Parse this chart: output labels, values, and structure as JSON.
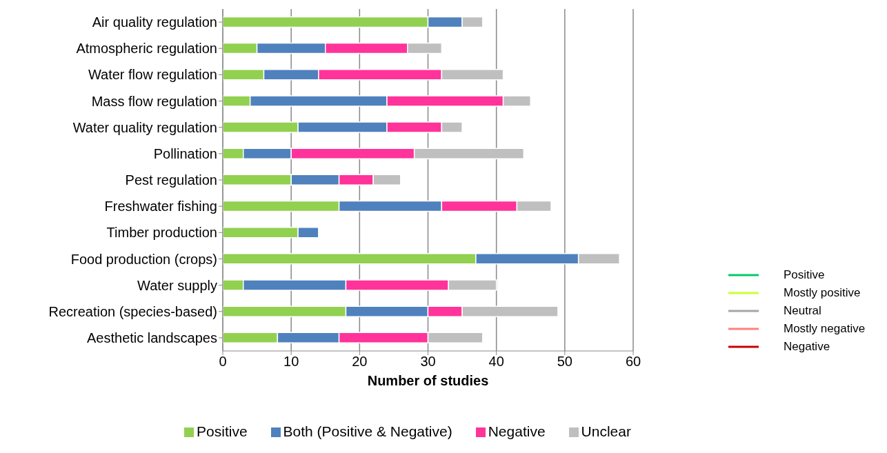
{
  "chart_data": {
    "type": "bar",
    "orientation": "horizontal",
    "stacked": true,
    "xlabel": "Number of studies",
    "categories": [
      "Air quality regulation",
      "Atmospheric regulation",
      "Water flow regulation",
      "Mass flow regulation",
      "Water quality regulation",
      "Pollination",
      "Pest regulation",
      "Freshwater fishing",
      "Timber production",
      "Food production (crops)",
      "Water supply",
      "Recreation (species-based)",
      "Aesthetic landscapes"
    ],
    "series": [
      {
        "name": "Positive",
        "color": "#92d050",
        "values": [
          30,
          5,
          6,
          4,
          11,
          3,
          10,
          17,
          11,
          37,
          3,
          18,
          8
        ]
      },
      {
        "name": "Both (Positive & Negative)",
        "color": "#4f81bd",
        "values": [
          5,
          10,
          8,
          20,
          13,
          7,
          7,
          15,
          3,
          15,
          15,
          12,
          9
        ]
      },
      {
        "name": "Negative",
        "color": "#ff3399",
        "values": [
          0,
          12,
          18,
          17,
          8,
          18,
          5,
          11,
          0,
          0,
          15,
          5,
          13
        ]
      },
      {
        "name": "Unclear",
        "color": "#bfbfbf",
        "values": [
          3,
          5,
          9,
          4,
          3,
          16,
          4,
          5,
          0,
          6,
          7,
          14,
          8
        ]
      },
      {
        "type": "line",
        "name": "Positive",
        "color": "#00cc66",
        "values": [
          null,
          null,
          null,
          null,
          null,
          null,
          null,
          null,
          null,
          null,
          null,
          null,
          null
        ]
      },
      {
        "type": "line",
        "name": "Mostly positive",
        "color": "#ccff33",
        "values": [
          null,
          null,
          null,
          null,
          null,
          null,
          null,
          null,
          null,
          null,
          null,
          null,
          null
        ]
      },
      {
        "type": "line",
        "name": "Neutral",
        "color": "#a6a6a6",
        "values": [
          null,
          null,
          null,
          null,
          null,
          null,
          null,
          null,
          null,
          null,
          null,
          null,
          null
        ]
      },
      {
        "type": "line",
        "name": "Mostly negative",
        "color": "#ff8080",
        "values": [
          null,
          null,
          null,
          null,
          null,
          null,
          null,
          null,
          null,
          null,
          null,
          null,
          null
        ]
      },
      {
        "type": "line",
        "name": "Negative",
        "color": "#cc0000",
        "values": [
          null,
          null,
          null,
          null,
          null,
          null,
          null,
          null,
          null,
          null,
          null,
          null,
          null
        ]
      }
    ],
    "xlim": [
      0,
      60
    ],
    "xticks": [
      0,
      10,
      20,
      30,
      40,
      50,
      60
    ],
    "grid": "x",
    "legend": "bottom"
  }
}
